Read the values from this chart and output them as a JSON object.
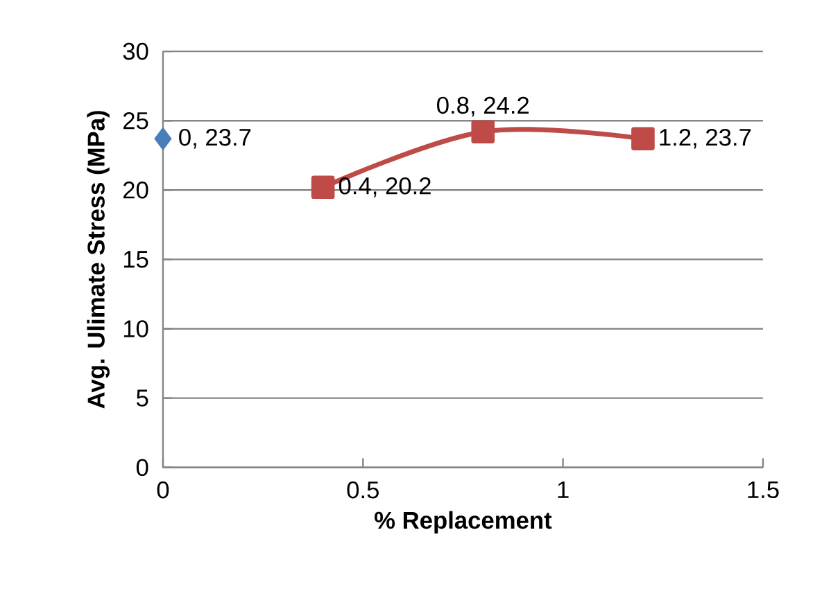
{
  "chart_data": {
    "type": "scatter",
    "xlabel": "% Replacement",
    "ylabel": "Avg. Ulimate Stress (MPa)",
    "series": [
      {
        "marker": "diamond",
        "color": "#4a7ebb",
        "x": [
          0
        ],
        "values": [
          23.7
        ],
        "value_labels": [
          "0, 23.7"
        ]
      },
      {
        "type": "line",
        "marker": "square",
        "color": "#be4b48",
        "x": [
          0.4,
          0.8,
          1.2
        ],
        "values": [
          20.2,
          24.2,
          23.7
        ],
        "value_labels": [
          "0.4, 20.2",
          "0.8, 24.2",
          "1.2, 23.7"
        ]
      }
    ],
    "xlim": [
      0,
      1.5
    ],
    "xticks": [
      0,
      0.5,
      1,
      1.5
    ],
    "ylim": [
      0,
      30
    ],
    "yticks": [
      0,
      5,
      10,
      15,
      20,
      25,
      30
    ],
    "grid": "y"
  }
}
